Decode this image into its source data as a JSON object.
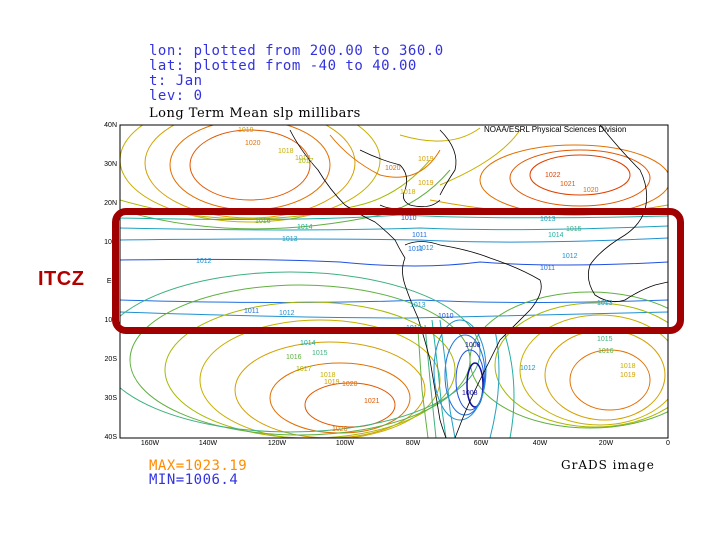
{
  "header": {
    "line1": "lon: plotted from 200.00 to 360.0",
    "line2": "lat: plotted from -40 to 40.00",
    "line3": "t: Jan",
    "line4": "lev: 0"
  },
  "map_title": "Long Term Mean slp millibars",
  "credit": "NOAA/ESRL Physical Sciences Division",
  "lat_labels": [
    "40N",
    "30N",
    "20N",
    "10N",
    "EQ",
    "10S",
    "20S",
    "30S",
    "40S"
  ],
  "lon_labels": [
    "160W",
    "140W",
    "120W",
    "100W",
    "80W",
    "60W",
    "40W",
    "20W",
    "0"
  ],
  "stats": {
    "max": "MAX=1023.19",
    "min": "MIN=1006.4"
  },
  "engine": "GrADS image",
  "annotation": {
    "label": "ITCZ"
  },
  "contour_labels": [
    {
      "t": "1019",
      "c": "#d4a000"
    },
    {
      "t": "1020",
      "c": "#e07000"
    },
    {
      "t": "1018",
      "c": "#c8b000"
    },
    {
      "t": "1018",
      "c": "#c8b000"
    },
    {
      "t": "1019",
      "c": "#d4a000"
    },
    {
      "t": "1020",
      "c": "#e07000"
    },
    {
      "t": "1017",
      "c": "#a8b800"
    },
    {
      "t": "1022",
      "c": "#e04000"
    },
    {
      "t": "1021",
      "c": "#e05800"
    },
    {
      "t": "1020",
      "c": "#e07000"
    },
    {
      "t": "1019",
      "c": "#d4a000"
    },
    {
      "t": "1018",
      "c": "#c8b000"
    },
    {
      "t": "1016",
      "c": "#60b040"
    },
    {
      "t": "1014",
      "c": "#20b0a0"
    },
    {
      "t": "1013",
      "c": "#20a0c0"
    },
    {
      "t": "1012",
      "c": "#2090d0"
    },
    {
      "t": "1010",
      "c": "#2050e0"
    },
    {
      "t": "1011",
      "c": "#2070e0"
    },
    {
      "t": "1012",
      "c": "#2090d0"
    },
    {
      "t": "1013",
      "c": "#20a0c0"
    },
    {
      "t": "1014",
      "c": "#20b0a0"
    },
    {
      "t": "1015",
      "c": "#40b080"
    },
    {
      "t": "1011",
      "c": "#2070e0"
    },
    {
      "t": "1012",
      "c": "#2090d0"
    },
    {
      "t": "1011",
      "c": "#2070e0"
    },
    {
      "t": "1011",
      "c": "#2070e0"
    },
    {
      "t": "1012",
      "c": "#2090d0"
    },
    {
      "t": "1013",
      "c": "#20a0c0"
    },
    {
      "t": "1010",
      "c": "#2050e0"
    },
    {
      "t": "1012",
      "c": "#2090d0"
    },
    {
      "t": "1014",
      "c": "#20b0a0"
    },
    {
      "t": "1015",
      "c": "#40b080"
    },
    {
      "t": "1016",
      "c": "#60b040"
    },
    {
      "t": "1017",
      "c": "#a8b800"
    },
    {
      "t": "1018",
      "c": "#c8b000"
    },
    {
      "t": "1019",
      "c": "#d4a000"
    },
    {
      "t": "1020",
      "c": "#e07000"
    },
    {
      "t": "1021",
      "c": "#e05800"
    },
    {
      "t": "1020",
      "c": "#e07000"
    },
    {
      "t": "1008",
      "c": "#1010a0"
    },
    {
      "t": "1008",
      "c": "#1010a0"
    },
    {
      "t": "1012",
      "c": "#2090d0"
    },
    {
      "t": "1013",
      "c": "#20a0c0"
    },
    {
      "t": "1015",
      "c": "#40b080"
    },
    {
      "t": "1016",
      "c": "#60b040"
    },
    {
      "t": "1018",
      "c": "#c8b000"
    },
    {
      "t": "1019",
      "c": "#d4a000"
    },
    {
      "t": "1013",
      "c": "#20a0c0"
    }
  ]
}
